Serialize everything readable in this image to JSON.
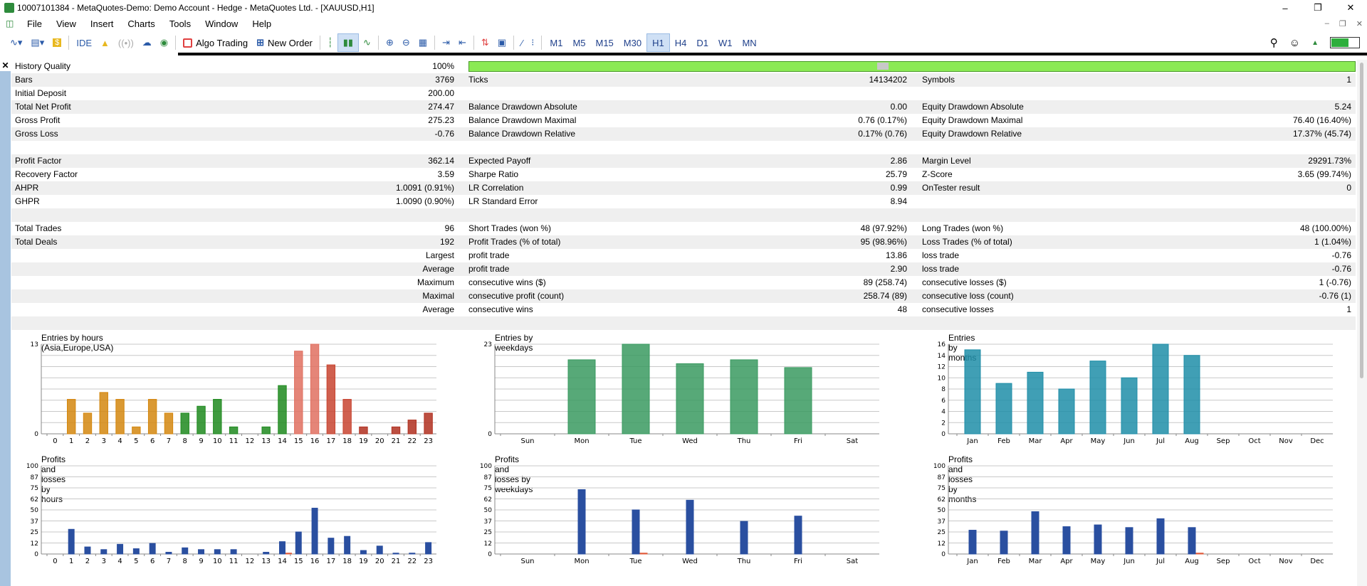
{
  "titlebar": {
    "title": "10007101384 - MetaQuotes-Demo: Demo Account - Hedge - MetaQuotes Ltd. - [XAUUSD,H1]"
  },
  "menu": [
    "File",
    "View",
    "Insert",
    "Charts",
    "Tools",
    "Window",
    "Help"
  ],
  "toolbar": {
    "ide_label": "IDE",
    "algo_label": "Algo Trading",
    "new_order_label": "New Order",
    "periods": [
      "M1",
      "M5",
      "M15",
      "M30",
      "H1",
      "H4",
      "D1",
      "W1",
      "MN"
    ],
    "active_period": "H1"
  },
  "report": {
    "history_quality_label": "History Quality",
    "history_quality_value": "100%",
    "history_quality_fraction": 1.0,
    "rows": [
      {
        "l1": "Bars",
        "v1": "3769",
        "l2": "Ticks",
        "v2": "14134202",
        "l3": "Symbols",
        "v3": "1"
      },
      {
        "l1": "Initial Deposit",
        "v1": "200.00",
        "l2": "",
        "v2": "",
        "l3": "",
        "v3": ""
      },
      {
        "l1": "Total Net Profit",
        "v1": "274.47",
        "l2": "Balance Drawdown Absolute",
        "v2": "0.00",
        "l3": "Equity Drawdown Absolute",
        "v3": "5.24"
      },
      {
        "l1": "Gross Profit",
        "v1": "275.23",
        "l2": "Balance Drawdown Maximal",
        "v2": "0.76 (0.17%)",
        "l3": "Equity Drawdown Maximal",
        "v3": "76.40 (16.40%)"
      },
      {
        "l1": "Gross Loss",
        "v1": "-0.76",
        "l2": "Balance Drawdown Relative",
        "v2": "0.17% (0.76)",
        "l3": "Equity Drawdown Relative",
        "v3": "17.37% (45.74)"
      },
      {
        "l1": "",
        "v1": "",
        "l2": "",
        "v2": "",
        "l3": "",
        "v3": ""
      },
      {
        "l1": "Profit Factor",
        "v1": "362.14",
        "l2": "Expected Payoff",
        "v2": "2.86",
        "l3": "Margin Level",
        "v3": "29291.73%"
      },
      {
        "l1": "Recovery Factor",
        "v1": "3.59",
        "l2": "Sharpe Ratio",
        "v2": "25.79",
        "l3": "Z-Score",
        "v3": "3.65 (99.74%)"
      },
      {
        "l1": "AHPR",
        "v1": "1.0091 (0.91%)",
        "l2": "LR Correlation",
        "v2": "0.99",
        "l3": "OnTester result",
        "v3": "0"
      },
      {
        "l1": "GHPR",
        "v1": "1.0090 (0.90%)",
        "l2": "LR Standard Error",
        "v2": "8.94",
        "l3": "",
        "v3": ""
      },
      {
        "l1": "",
        "v1": "",
        "l2": "",
        "v2": "",
        "l3": "",
        "v3": ""
      },
      {
        "l1": "Total Trades",
        "v1": "96",
        "l2": "Short Trades (won %)",
        "v2": "48 (97.92%)",
        "l3": "Long Trades (won %)",
        "v3": "48 (100.00%)"
      },
      {
        "l1": "Total Deals",
        "v1": "192",
        "l2": "Profit Trades (% of total)",
        "v2": "95 (98.96%)",
        "l3": "Loss Trades (% of total)",
        "v3": "1 (1.04%)"
      },
      {
        "l1": "",
        "v1": "Largest",
        "l2": "profit trade",
        "v2": "13.86",
        "l3": "loss trade",
        "v3": "-0.76"
      },
      {
        "l1": "",
        "v1": "Average",
        "l2": "profit trade",
        "v2": "2.90",
        "l3": "loss trade",
        "v3": "-0.76"
      },
      {
        "l1": "",
        "v1": "Maximum",
        "l2": "consecutive wins ($)",
        "v2": "89 (258.74)",
        "l3": "consecutive losses ($)",
        "v3": "1 (-0.76)"
      },
      {
        "l1": "",
        "v1": "Maximal",
        "l2": "consecutive profit (count)",
        "v2": "258.74 (89)",
        "l3": "consecutive loss (count)",
        "v3": "-0.76 (1)"
      },
      {
        "l1": "",
        "v1": "Average",
        "l2": "consecutive wins",
        "v2": "48",
        "l3": "consecutive losses",
        "v3": "1"
      },
      {
        "l1": "",
        "v1": "",
        "l2": "",
        "v2": "",
        "l3": "",
        "v3": ""
      }
    ]
  },
  "chart_data": [
    {
      "type": "bar",
      "title": "Entries by hours (Asia,Europe,USA)",
      "categories": [
        "0",
        "1",
        "2",
        "3",
        "4",
        "5",
        "6",
        "7",
        "8",
        "9",
        "10",
        "11",
        "12",
        "13",
        "14",
        "15",
        "16",
        "17",
        "18",
        "19",
        "20",
        "21",
        "22",
        "23"
      ],
      "values": [
        0,
        5,
        3,
        6,
        5,
        1,
        5,
        3,
        3,
        4,
        5,
        1,
        0,
        1,
        7,
        12,
        13,
        10,
        5,
        1,
        0,
        1,
        2,
        3
      ],
      "ylim": [
        0,
        13
      ],
      "yticks": [
        "0",
        "13"
      ],
      "colors": [
        "#d4870f",
        "#d4870f",
        "#d4870f",
        "#d4870f",
        "#d4870f",
        "#d4870f",
        "#d4870f",
        "#d4870f",
        "#1f8a1f",
        "#1f8a1f",
        "#1f8a1f",
        "#1f8a1f",
        "#1f8a1f",
        "#1f8a1f",
        "#1f8a1f",
        "#e07060",
        "#e07060",
        "#c84430",
        "#c84430",
        "#b03020",
        "#b03020",
        "#b03020",
        "#b03020",
        "#b03020"
      ]
    },
    {
      "type": "bar",
      "title": "Entries by weekdays",
      "categories": [
        "Sun",
        "Mon",
        "Tue",
        "Wed",
        "Thu",
        "Fri",
        "Sat"
      ],
      "values": [
        0,
        19,
        23,
        18,
        19,
        17,
        0
      ],
      "ylim": [
        0,
        23
      ],
      "yticks": [
        "0",
        "23"
      ],
      "colors": [
        "#3a9a60"
      ]
    },
    {
      "type": "bar",
      "title": "Entries by months",
      "categories": [
        "Jan",
        "Feb",
        "Mar",
        "Apr",
        "May",
        "Jun",
        "Jul",
        "Aug",
        "Sep",
        "Oct",
        "Nov",
        "Dec"
      ],
      "values": [
        15,
        9,
        11,
        8,
        13,
        10,
        16,
        14,
        0,
        0,
        0,
        0
      ],
      "ylim": [
        0,
        16
      ],
      "yticks": [
        "0",
        "2",
        "4",
        "6",
        "8",
        "10",
        "12",
        "14",
        "16"
      ],
      "colors": [
        "#1f8ea8"
      ]
    },
    {
      "type": "bar",
      "title": "Profits and losses by hours",
      "categories": [
        "0",
        "1",
        "2",
        "3",
        "4",
        "5",
        "6",
        "7",
        "8",
        "9",
        "10",
        "11",
        "12",
        "13",
        "14",
        "15",
        "16",
        "17",
        "18",
        "19",
        "20",
        "21",
        "22",
        "23"
      ],
      "series": [
        {
          "values": [
            0,
            28,
            8,
            5,
            11,
            6,
            12,
            2,
            7,
            5,
            5,
            5,
            0,
            2,
            14,
            25,
            52,
            18,
            20,
            4,
            9,
            1,
            1,
            13
          ]
        },
        {
          "values": [
            0,
            0,
            0,
            0,
            0,
            0,
            0,
            0,
            0,
            0,
            0,
            0,
            0,
            0,
            1,
            0,
            0,
            0,
            0,
            0,
            0,
            0,
            0,
            0
          ]
        }
      ],
      "ylim": [
        0,
        100
      ],
      "yticks": [
        "0",
        "12",
        "25",
        "37",
        "50",
        "62",
        "75",
        "87",
        "100"
      ],
      "colors": [
        "#2a4fa0",
        "#e05a3a"
      ]
    },
    {
      "type": "bar",
      "title": "Profits and losses by weekdays",
      "categories": [
        "Sun",
        "Mon",
        "Tue",
        "Wed",
        "Thu",
        "Fri",
        "Sat"
      ],
      "series": [
        {
          "values": [
            0,
            73,
            50,
            61,
            37,
            43,
            0
          ]
        },
        {
          "values": [
            0,
            0,
            1,
            0,
            0,
            0,
            0
          ]
        }
      ],
      "ylim": [
        0,
        100
      ],
      "yticks": [
        "0",
        "12",
        "25",
        "37",
        "50",
        "62",
        "75",
        "87",
        "100"
      ],
      "colors": [
        "#2a4fa0",
        "#e05a3a"
      ]
    },
    {
      "type": "bar",
      "title": "Profits and losses by months",
      "categories": [
        "Jan",
        "Feb",
        "Mar",
        "Apr",
        "May",
        "Jun",
        "Jul",
        "Aug",
        "Sep",
        "Oct",
        "Nov",
        "Dec"
      ],
      "series": [
        {
          "values": [
            27,
            26,
            48,
            31,
            33,
            30,
            40,
            30,
            0,
            0,
            0,
            0
          ]
        },
        {
          "values": [
            0,
            0,
            0,
            0,
            0,
            0,
            0,
            1,
            0,
            0,
            0,
            0
          ]
        }
      ],
      "ylim": [
        0,
        100
      ],
      "yticks": [
        "0",
        "12",
        "25",
        "37",
        "50",
        "62",
        "75",
        "87",
        "100"
      ],
      "colors": [
        "#2a4fa0",
        "#e05a3a"
      ]
    }
  ]
}
